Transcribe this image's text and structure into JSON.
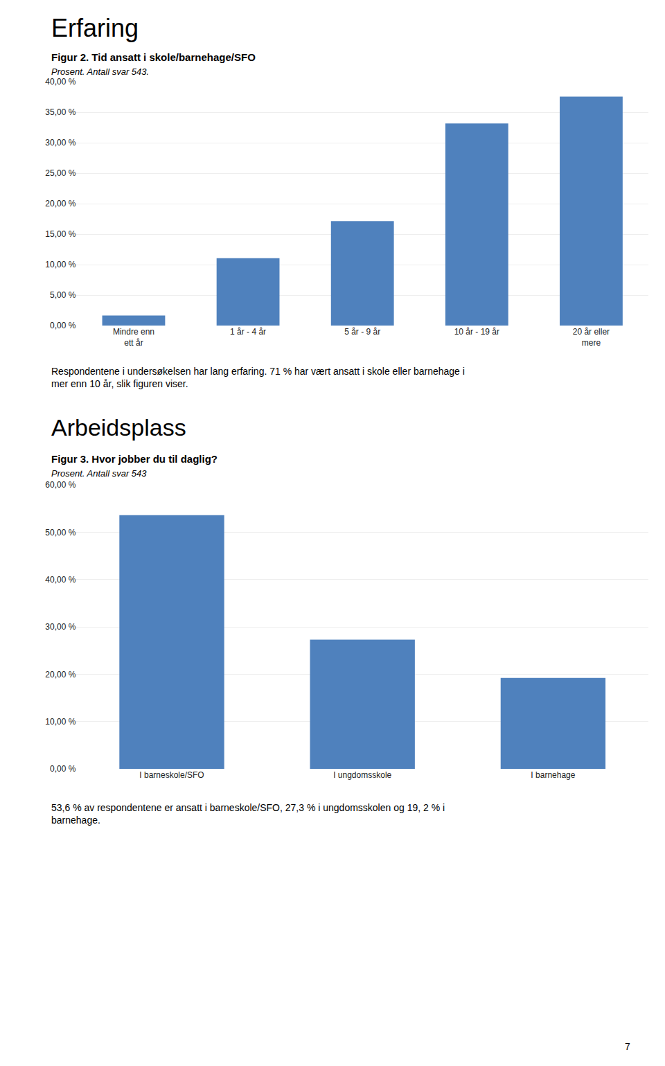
{
  "chart_data": [
    {
      "type": "bar",
      "title": "Figur 2. Tid ansatt i skole/barnehage/SFO",
      "subtitle": "Prosent. Antall svar 543.",
      "annotations": [
        "Erfaring",
        "Respondentene i undersøkelsen har lang erfaring. 71 % har vært ansatt i skole eller barnehage i mer enn 10 år, slik figuren viser."
      ],
      "categories": [
        "Mindre enn\nett år",
        "1 år - 4 år",
        "5 år - 9 år",
        "10 år - 19 år",
        "20 år eller\nmere"
      ],
      "values": [
        1.66,
        11.05,
        17.13,
        33.15,
        37.57
      ],
      "color": "#4f81bd",
      "ylim": [
        0,
        40
      ],
      "yticks": [
        {
          "value": 0,
          "label": "0,00 %"
        },
        {
          "value": 5,
          "label": "5,00 %"
        },
        {
          "value": 10,
          "label": "10,00 %"
        },
        {
          "value": 15,
          "label": "15,00 %"
        },
        {
          "value": 20,
          "label": "20,00 %"
        },
        {
          "value": 25,
          "label": "25,00 %"
        },
        {
          "value": 30,
          "label": "30,00 %"
        },
        {
          "value": 35,
          "label": "35,00 %"
        },
        {
          "value": 40,
          "label": "40,00 %"
        }
      ],
      "grid": true
    },
    {
      "type": "bar",
      "title": "Figur 3. Hvor jobber du til daglig?",
      "subtitle": "Prosent. Antall svar 543",
      "annotations": [
        "Arbeidsplass",
        "53,6 % av respondentene er ansatt i barneskole/SFO, 27,3 % i ungdomsskolen og 19, 2 % i barnehage.",
        "7"
      ],
      "categories": [
        "I barneskole/SFO",
        "I ungdomsskole",
        "I barnehage"
      ],
      "values": [
        53.6,
        27.3,
        19.2
      ],
      "color": "#4f81bd",
      "ylim": [
        0,
        60
      ],
      "yticks": [
        {
          "value": 0,
          "label": "0,00 %"
        },
        {
          "value": 10,
          "label": "10,00 %"
        },
        {
          "value": 20,
          "label": "20,00 %"
        },
        {
          "value": 30,
          "label": "30,00 %"
        },
        {
          "value": 40,
          "label": "40,00 %"
        },
        {
          "value": 50,
          "label": "50,00 %"
        },
        {
          "value": 60,
          "label": "60,00 %"
        }
      ],
      "grid": true
    }
  ]
}
